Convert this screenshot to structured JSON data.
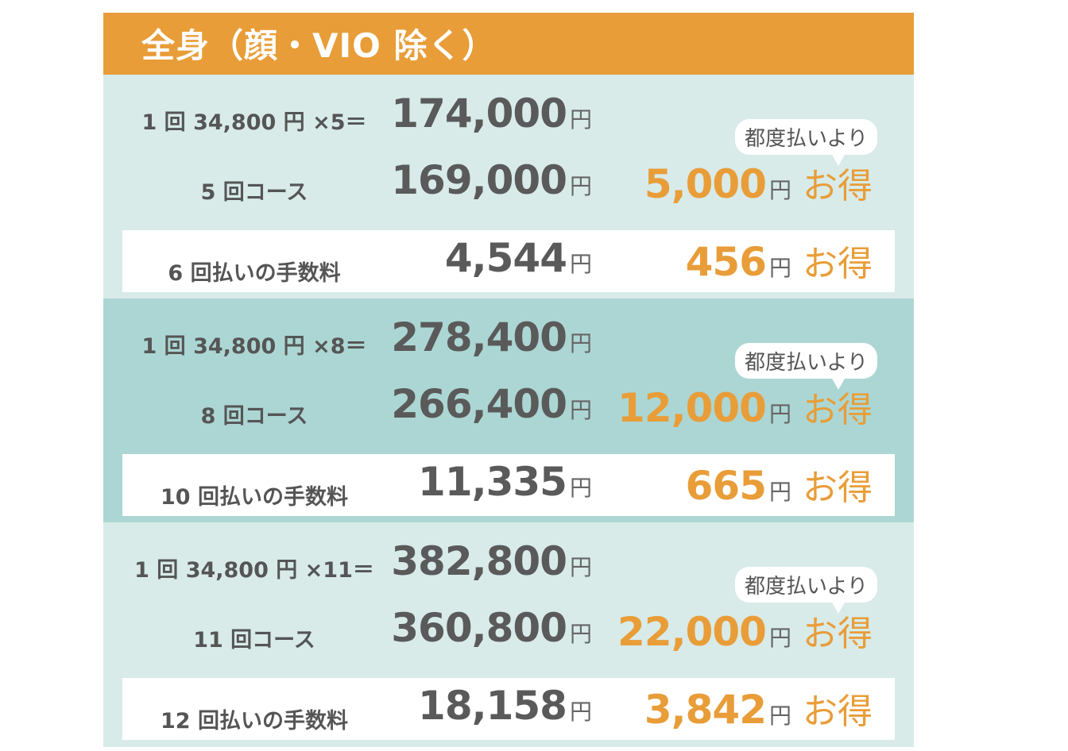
{
  "title": "全身（顔・VIO 除く）",
  "bubble_label": "都度払いより",
  "yen": "円",
  "otoku": "お得",
  "sections": [
    {
      "formula": "1 回 34,800 円 ×5＝",
      "single_total": "174,000",
      "course_label": "5 回コース",
      "course_price": "169,000",
      "course_saving": "5,000",
      "installment_label": "6 回払いの手数料",
      "installment_fee": "4,544",
      "installment_saving": "456"
    },
    {
      "formula": "1 回 34,800 円 ×8＝",
      "single_total": "278,400",
      "course_label": "8 回コース",
      "course_price": "266,400",
      "course_saving": "12,000",
      "installment_label": "10 回払いの手数料",
      "installment_fee": "11,335",
      "installment_saving": "665"
    },
    {
      "formula": "1 回 34,800 円 ×11＝",
      "single_total": "382,800",
      "course_label": "11 回コース",
      "course_price": "360,800",
      "course_saving": "22,000",
      "installment_label": "12 回払いの手数料",
      "installment_fee": "18,158",
      "installment_saving": "3,842"
    }
  ],
  "colors": {
    "header": "#e89d38",
    "accent": "#e89d38",
    "section_light": "#d8ebe9",
    "section_dark": "#acd6d3",
    "text": "#555555"
  }
}
